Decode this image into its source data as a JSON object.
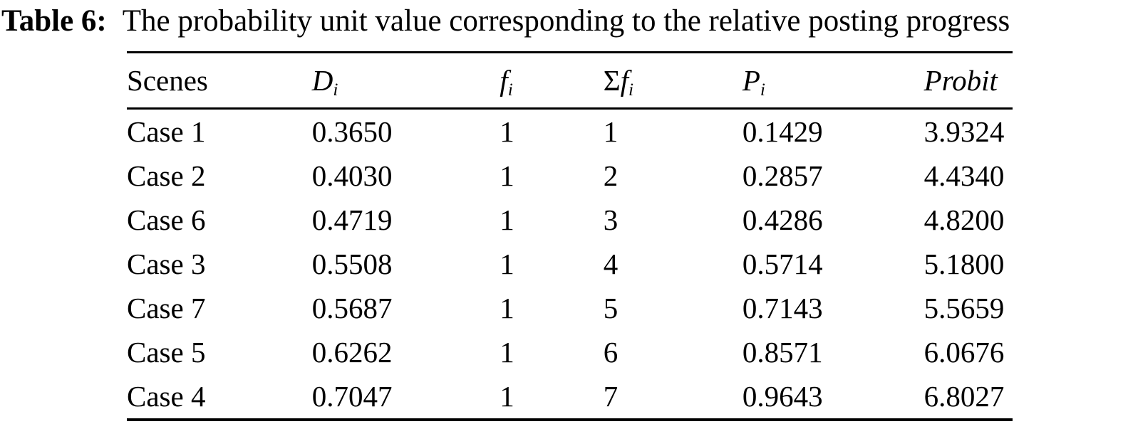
{
  "page": {
    "background_color": "#ffffff",
    "text_color": "#000000"
  },
  "caption": {
    "label": "Table 6:",
    "text": "The probability unit value corresponding to the relative posting progress"
  },
  "table": {
    "columns": [
      {
        "prefix": "Scenes",
        "main": "",
        "sub": ""
      },
      {
        "prefix": "",
        "main": "D",
        "sub": "i"
      },
      {
        "prefix": "",
        "main": "f",
        "sub": "i"
      },
      {
        "prefix": "Σ",
        "main": "f",
        "sub": "i"
      },
      {
        "prefix": "",
        "main": "P",
        "sub": "i"
      },
      {
        "prefix": "",
        "main": "Probit",
        "sub": ""
      }
    ],
    "rows": [
      {
        "cells": [
          "Case 1",
          "0.3650",
          "1",
          "1",
          "0.1429",
          "3.9324"
        ]
      },
      {
        "cells": [
          "Case 2",
          "0.4030",
          "1",
          "2",
          "0.2857",
          "4.4340"
        ]
      },
      {
        "cells": [
          "Case 6",
          "0.4719",
          "1",
          "3",
          "0.4286",
          "4.8200"
        ]
      },
      {
        "cells": [
          "Case 3",
          "0.5508",
          "1",
          "4",
          "0.5714",
          "5.1800"
        ]
      },
      {
        "cells": [
          "Case 7",
          "0.5687",
          "1",
          "5",
          "0.7143",
          "5.5659"
        ]
      },
      {
        "cells": [
          "Case 5",
          "0.6262",
          "1",
          "6",
          "0.8571",
          "6.0676"
        ]
      },
      {
        "cells": [
          "Case 4",
          "0.7047",
          "1",
          "7",
          "0.9643",
          "6.8027"
        ]
      }
    ]
  }
}
